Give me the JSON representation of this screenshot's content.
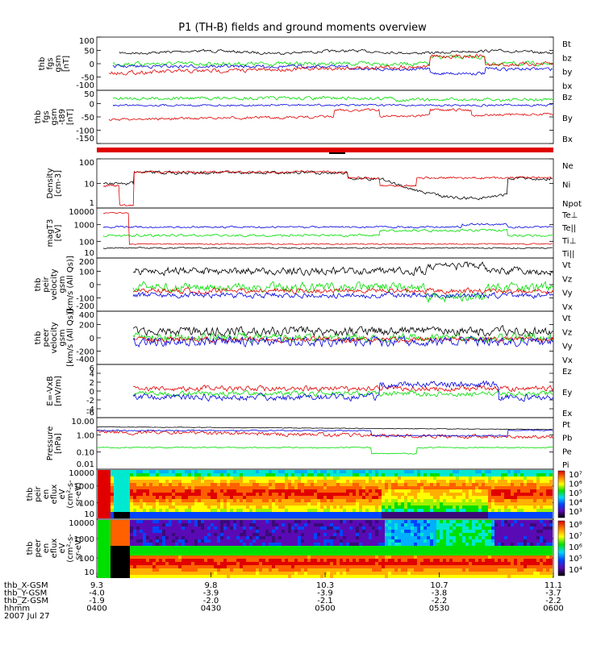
{
  "chart_data": {
    "type": "line",
    "title": "P1 (TH-B) fields and ground moments overview",
    "colors": {
      "black": "#000000",
      "red": "#e00000",
      "green": "#00dd00",
      "blue": "#0000dd"
    },
    "panels": [
      {
        "id": "fgs",
        "ylabel": [
          "thb",
          "fgs",
          "gsm",
          "[nT]"
        ],
        "yticks": [
          "100",
          "50",
          "0",
          "-50",
          "-100"
        ],
        "legend": [
          {
            "text": "Bt",
            "color": "black"
          },
          {
            "text": "bz",
            "color": "red"
          },
          {
            "text": "by",
            "color": "green"
          },
          {
            "text": "bx",
            "color": "blue"
          }
        ]
      },
      {
        "id": "fgs_t89",
        "ylabel": [
          "thb",
          "fgs",
          "gsm",
          "-t89",
          "[nT]"
        ],
        "yticks": [
          "50",
          "0",
          "-50",
          "-100",
          "-150"
        ],
        "legend": [
          {
            "text": "Bz",
            "color": "red"
          },
          {
            "text": "By",
            "color": "green"
          },
          {
            "text": "Bx",
            "color": "blue"
          }
        ]
      },
      {
        "id": "density",
        "ylabel": [
          "Density",
          "[cm-3]"
        ],
        "yticks": [
          "100",
          "10",
          "1"
        ],
        "legend": [
          {
            "text": "Ne",
            "color": "red"
          },
          {
            "text": "Ni",
            "color": "black"
          },
          {
            "text": "Npot",
            "color": "blue"
          }
        ]
      },
      {
        "id": "temp",
        "ylabel": [
          "magT3",
          "[eV]"
        ],
        "yticks": [
          "10000",
          "1000",
          "100",
          "10"
        ],
        "legend": [
          {
            "text": "Te⊥",
            "color": "red"
          },
          {
            "text": "Te||",
            "color": "black"
          },
          {
            "text": "Ti⊥",
            "color": "blue"
          },
          {
            "text": "Ti||",
            "color": "green"
          }
        ]
      },
      {
        "id": "vi",
        "ylabel": [
          "thb",
          "peir",
          "velocity",
          "gsm",
          "[km/s (All Qs)]"
        ],
        "yticks": [
          "200",
          "100",
          "0",
          "-100",
          "-200"
        ],
        "legend": [
          {
            "text": "Vt",
            "color": "black"
          },
          {
            "text": "Vz",
            "color": "red"
          },
          {
            "text": "Vy",
            "color": "green"
          },
          {
            "text": "Vx",
            "color": "blue"
          }
        ]
      },
      {
        "id": "ve",
        "ylabel": [
          "thb",
          "peer",
          "velocity",
          "gsm",
          "[km/s (All Qs)]"
        ],
        "yticks": [
          "400",
          "200",
          "0",
          "-200",
          "-400"
        ],
        "legend": [
          {
            "text": "Vt",
            "color": "black"
          },
          {
            "text": "Vz",
            "color": "red"
          },
          {
            "text": "Vy",
            "color": "green"
          },
          {
            "text": "Vx",
            "color": "blue"
          }
        ]
      },
      {
        "id": "efield",
        "ylabel": [
          "E=-VxB",
          "[mV/m]"
        ],
        "yticks": [
          "6",
          "4",
          "2",
          "0",
          "-2",
          "-4",
          "-6"
        ],
        "legend": [
          {
            "text": "Ez",
            "color": "red"
          },
          {
            "text": "Ey",
            "color": "green"
          },
          {
            "text": "Ex",
            "color": "blue"
          }
        ]
      },
      {
        "id": "pressure",
        "ylabel": [
          "Pressure",
          "[nPa]"
        ],
        "yticks": [
          "10.00",
          "1.00",
          "0.10",
          "0.01"
        ],
        "legend": [
          {
            "text": "Pt",
            "color": "black"
          },
          {
            "text": "Pb",
            "color": "red"
          },
          {
            "text": "Pe",
            "color": "green"
          },
          {
            "text": "Pi",
            "color": "blue"
          }
        ]
      },
      {
        "id": "ion_spec",
        "ylabel": [
          "thb",
          "peir",
          "en",
          "eflux",
          "eV",
          "(cm²-s-",
          "sr-eV)"
        ],
        "yticks": [
          "10000",
          "1000",
          "100",
          "10"
        ],
        "colorbar": [
          "10⁷",
          "10⁶",
          "10⁵",
          "10⁴",
          "10³"
        ]
      },
      {
        "id": "ele_spec",
        "ylabel": [
          "thb",
          "peer",
          "en",
          "eflux",
          "eV",
          "(cm²-s-",
          "sr-eV)"
        ],
        "yticks": [
          "10000",
          "1000",
          "100",
          "10"
        ],
        "colorbar": [
          "10⁸",
          "10⁷",
          "10⁶",
          "10⁵",
          "10⁴"
        ]
      }
    ],
    "xaxis": {
      "rows": [
        "thb_X-GSM",
        "thb_Y-GSM",
        "thb_Z-GSM",
        "hhmm",
        "2007 Jul 27"
      ],
      "ticks": [
        {
          "x": "9.3",
          "y": "-4.0",
          "z": "-1.9",
          "t": "0400"
        },
        {
          "x": "9.8",
          "y": "-3.9",
          "z": "-2.0",
          "t": "0430"
        },
        {
          "x": "10.3",
          "y": "-3.9",
          "z": "-2.1",
          "t": "0500"
        },
        {
          "x": "10.7",
          "y": "-3.8",
          "z": "-2.2",
          "t": "0530"
        },
        {
          "x": "11.1",
          "y": "-3.7",
          "z": "-2.2",
          "t": "0600"
        }
      ]
    }
  }
}
